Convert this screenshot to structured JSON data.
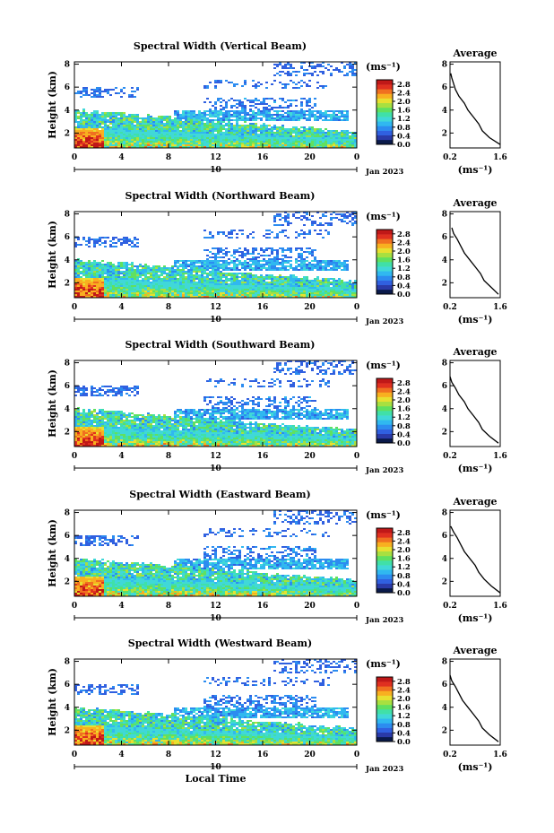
{
  "figure": {
    "unit_label": "(ms⁻¹)",
    "xlabel": "Local Time",
    "ylabel": "Height (km)",
    "date_tick": "10",
    "month_year": "Jan 2023",
    "avg_title": "Average"
  },
  "colorbar": {
    "ticks": [
      "0.0",
      "0.4",
      "0.8",
      "1.2",
      "1.6",
      "2.0",
      "2.4",
      "2.8"
    ],
    "range": [
      0,
      3.0
    ],
    "colors": [
      "#0a1a4a",
      "#2a3aa8",
      "#3060e0",
      "#2c8cf0",
      "#30b8f0",
      "#40d8d8",
      "#40e0a8",
      "#60e060",
      "#a8e040",
      "#e8e030",
      "#f8b020",
      "#f07020",
      "#e03020",
      "#c01818"
    ]
  },
  "chart_data": [
    {
      "type": "heatmap",
      "title": "Spectral Width (Vertical Beam)",
      "x_ticks": [
        "0",
        "4",
        "8",
        "12",
        "16",
        "20",
        "0"
      ],
      "xlim": [
        0,
        24
      ],
      "y_ticks": [
        "2",
        "4",
        "6",
        "8"
      ],
      "ylim": [
        0.7,
        8.2
      ],
      "avg_x_ticks": [
        "0.2",
        "1.6"
      ],
      "avg_xlim": [
        0.2,
        1.6
      ],
      "avg_ylim": [
        0.7,
        8.2
      ],
      "average_profile": [
        [
          1.6,
          1.0
        ],
        [
          1.3,
          1.6
        ],
        [
          1.1,
          2.2
        ],
        [
          1.0,
          2.8
        ],
        [
          0.85,
          3.4
        ],
        [
          0.7,
          4.0
        ],
        [
          0.6,
          4.6
        ],
        [
          0.45,
          5.2
        ],
        [
          0.35,
          5.8
        ],
        [
          0.3,
          6.3
        ],
        [
          0.25,
          6.8
        ],
        [
          0.22,
          7.2
        ]
      ]
    },
    {
      "type": "heatmap",
      "title": "Spectral Width (Northward Beam)",
      "x_ticks": [
        "0",
        "4",
        "8",
        "12",
        "16",
        "20",
        "0"
      ],
      "xlim": [
        0,
        24
      ],
      "y_ticks": [
        "2",
        "4",
        "6",
        "8"
      ],
      "ylim": [
        0.7,
        8.2
      ],
      "avg_x_ticks": [
        "0.2",
        "1.6"
      ],
      "avg_xlim": [
        0.2,
        1.6
      ],
      "avg_ylim": [
        0.7,
        8.2
      ],
      "average_profile": [
        [
          1.55,
          1.0
        ],
        [
          1.35,
          1.6
        ],
        [
          1.15,
          2.2
        ],
        [
          1.05,
          2.8
        ],
        [
          0.9,
          3.4
        ],
        [
          0.75,
          4.0
        ],
        [
          0.6,
          4.6
        ],
        [
          0.5,
          5.2
        ],
        [
          0.4,
          5.8
        ],
        [
          0.3,
          6.3
        ],
        [
          0.25,
          6.8
        ]
      ]
    },
    {
      "type": "heatmap",
      "title": "Spectral Width (Southward Beam)",
      "x_ticks": [
        "0",
        "4",
        "8",
        "12",
        "16",
        "20",
        "0"
      ],
      "xlim": [
        0,
        24
      ],
      "y_ticks": [
        "2",
        "4",
        "6",
        "8"
      ],
      "ylim": [
        0.7,
        8.2
      ],
      "avg_x_ticks": [
        "0.2",
        "1.6"
      ],
      "avg_xlim": [
        0.2,
        1.6
      ],
      "avg_ylim": [
        0.7,
        8.2
      ],
      "average_profile": [
        [
          1.55,
          1.0
        ],
        [
          1.3,
          1.6
        ],
        [
          1.1,
          2.2
        ],
        [
          1.0,
          2.8
        ],
        [
          0.85,
          3.4
        ],
        [
          0.7,
          4.0
        ],
        [
          0.6,
          4.6
        ],
        [
          0.45,
          5.2
        ],
        [
          0.35,
          5.8
        ],
        [
          0.25,
          6.3
        ],
        [
          0.2,
          6.8
        ]
      ]
    },
    {
      "type": "heatmap",
      "title": "Spectral Width (Eastward Beam)",
      "x_ticks": [
        "0",
        "4",
        "8",
        "12",
        "16",
        "20",
        "0"
      ],
      "xlim": [
        0,
        24
      ],
      "y_ticks": [
        "2",
        "4",
        "6",
        "8"
      ],
      "ylim": [
        0.7,
        8.2
      ],
      "avg_x_ticks": [
        "0.2",
        "1.6"
      ],
      "avg_xlim": [
        0.2,
        1.6
      ],
      "avg_ylim": [
        0.7,
        8.2
      ],
      "average_profile": [
        [
          1.6,
          1.0
        ],
        [
          1.35,
          1.6
        ],
        [
          1.15,
          2.2
        ],
        [
          1.0,
          2.8
        ],
        [
          0.9,
          3.4
        ],
        [
          0.75,
          4.0
        ],
        [
          0.6,
          4.6
        ],
        [
          0.5,
          5.2
        ],
        [
          0.4,
          5.8
        ],
        [
          0.3,
          6.3
        ],
        [
          0.22,
          6.8
        ]
      ]
    },
    {
      "type": "heatmap",
      "title": "Spectral Width (Westward Beam)",
      "x_ticks": [
        "0",
        "4",
        "8",
        "12",
        "16",
        "20",
        "0"
      ],
      "xlim": [
        0,
        24
      ],
      "y_ticks": [
        "2",
        "4",
        "6",
        "8"
      ],
      "ylim": [
        0.7,
        8.2
      ],
      "avg_x_ticks": [
        "0.2",
        "1.6"
      ],
      "avg_xlim": [
        0.2,
        1.6
      ],
      "avg_ylim": [
        0.7,
        8.2
      ],
      "average_profile": [
        [
          1.55,
          1.0
        ],
        [
          1.3,
          1.6
        ],
        [
          1.1,
          2.2
        ],
        [
          1.0,
          2.8
        ],
        [
          0.85,
          3.4
        ],
        [
          0.7,
          4.0
        ],
        [
          0.55,
          4.6
        ],
        [
          0.45,
          5.2
        ],
        [
          0.35,
          5.8
        ],
        [
          0.25,
          6.3
        ],
        [
          0.2,
          6.8
        ]
      ]
    }
  ]
}
